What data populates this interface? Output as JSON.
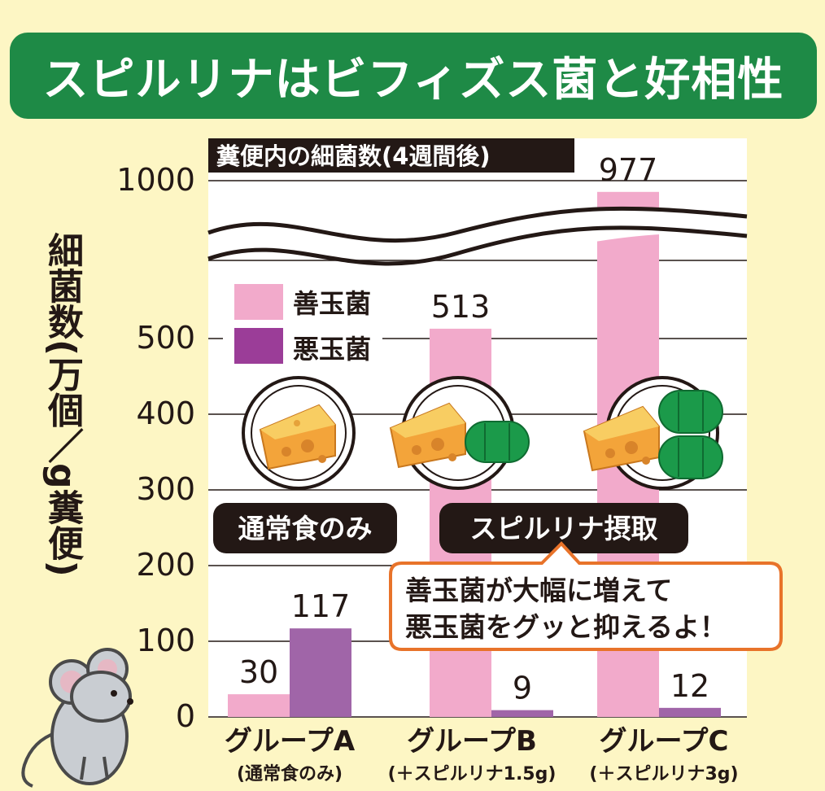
{
  "title": "スピルリナはビフィズス菌と好相性",
  "chart_data": {
    "type": "bar",
    "subtitle": "糞便内の細菌数(4週間後)",
    "ylabel": "細菌数(万個／g糞便)",
    "y_ticks": [
      0,
      100,
      200,
      300,
      400,
      500,
      1000
    ],
    "y_axis_break": [
      600,
      950
    ],
    "categories": [
      "グループA",
      "グループB",
      "グループC"
    ],
    "category_sublabels": [
      "(通常食のみ)",
      "(＋スピルリナ1.5g)",
      "(＋スピルリナ3g)"
    ],
    "series": [
      {
        "name": "善玉菌",
        "color": "#f2aacb",
        "values": [
          30,
          513,
          977
        ]
      },
      {
        "name": "悪玉菌",
        "color": "#a065a8",
        "values": [
          117,
          9,
          12
        ]
      }
    ],
    "legend_placement": "top-left",
    "grid": true
  },
  "annotations": {
    "label_normal": "通常食のみ",
    "label_spirulina": "スピルリナ摂取",
    "speech_line1": "善玉菌が大幅に増えて",
    "speech_line2": "悪玉菌をグッと抑えるよ！"
  },
  "icons": [
    "cheese-plate-icon",
    "spirulina-tablet-icon",
    "mouse-icon"
  ],
  "colors": {
    "title_bg": "#1e8a46",
    "background": "#fdf6c4",
    "good_bacteria": "#f2aacb",
    "bad_bacteria": "#a065a8",
    "speech_border": "#e8732a",
    "tablet": "#1b9a4a"
  }
}
